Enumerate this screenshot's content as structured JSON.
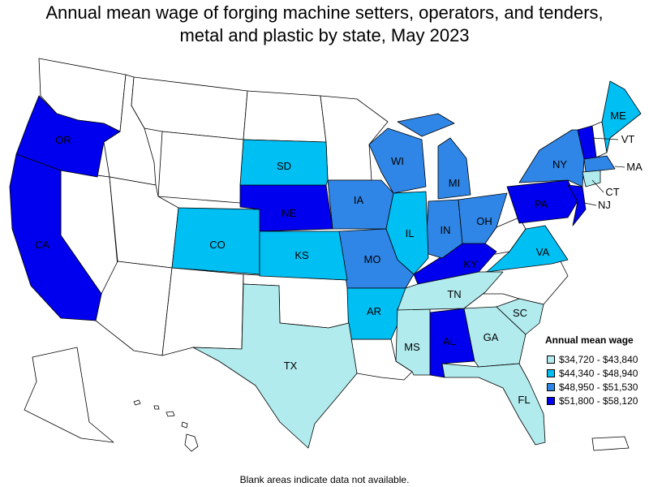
{
  "title_line1": "Annual mean wage of forging machine setters, operators, and tenders,",
  "title_line2": "metal and plastic by state, May 2023",
  "legend": {
    "title": "Annual mean wage",
    "items": [
      {
        "label": "$34,720 - $43,840",
        "color": "#b2ebee"
      },
      {
        "label": "$44,340 - $48,940",
        "color": "#00bff3"
      },
      {
        "label": "$48,950 - $51,530",
        "color": "#2f86e6"
      },
      {
        "label": "$51,800 - $58,120",
        "color": "#0000ee"
      }
    ]
  },
  "footnote": "Blank areas indicate data not available.",
  "states": [
    {
      "abbr": "OR",
      "tier": 4
    },
    {
      "abbr": "CA",
      "tier": 4
    },
    {
      "abbr": "NE",
      "tier": 4
    },
    {
      "abbr": "AL",
      "tier": 4
    },
    {
      "abbr": "KY",
      "tier": 4
    },
    {
      "abbr": "PA",
      "tier": 4
    },
    {
      "abbr": "NJ",
      "tier": 4
    },
    {
      "abbr": "VT",
      "tier": 4
    },
    {
      "abbr": "WI",
      "tier": 3
    },
    {
      "abbr": "MI",
      "tier": 3
    },
    {
      "abbr": "IA",
      "tier": 3
    },
    {
      "abbr": "IN",
      "tier": 3
    },
    {
      "abbr": "OH",
      "tier": 3
    },
    {
      "abbr": "MO",
      "tier": 3
    },
    {
      "abbr": "NY",
      "tier": 3
    },
    {
      "abbr": "MA",
      "tier": 3
    },
    {
      "abbr": "SD",
      "tier": 2
    },
    {
      "abbr": "CO",
      "tier": 2
    },
    {
      "abbr": "KS",
      "tier": 2
    },
    {
      "abbr": "IL",
      "tier": 2
    },
    {
      "abbr": "AR",
      "tier": 2
    },
    {
      "abbr": "VA",
      "tier": 2
    },
    {
      "abbr": "ME",
      "tier": 2
    },
    {
      "abbr": "TX",
      "tier": 1
    },
    {
      "abbr": "MS",
      "tier": 1
    },
    {
      "abbr": "TN",
      "tier": 1
    },
    {
      "abbr": "GA",
      "tier": 1
    },
    {
      "abbr": "SC",
      "tier": 1
    },
    {
      "abbr": "FL",
      "tier": 1
    },
    {
      "abbr": "CT",
      "tier": 1
    }
  ]
}
